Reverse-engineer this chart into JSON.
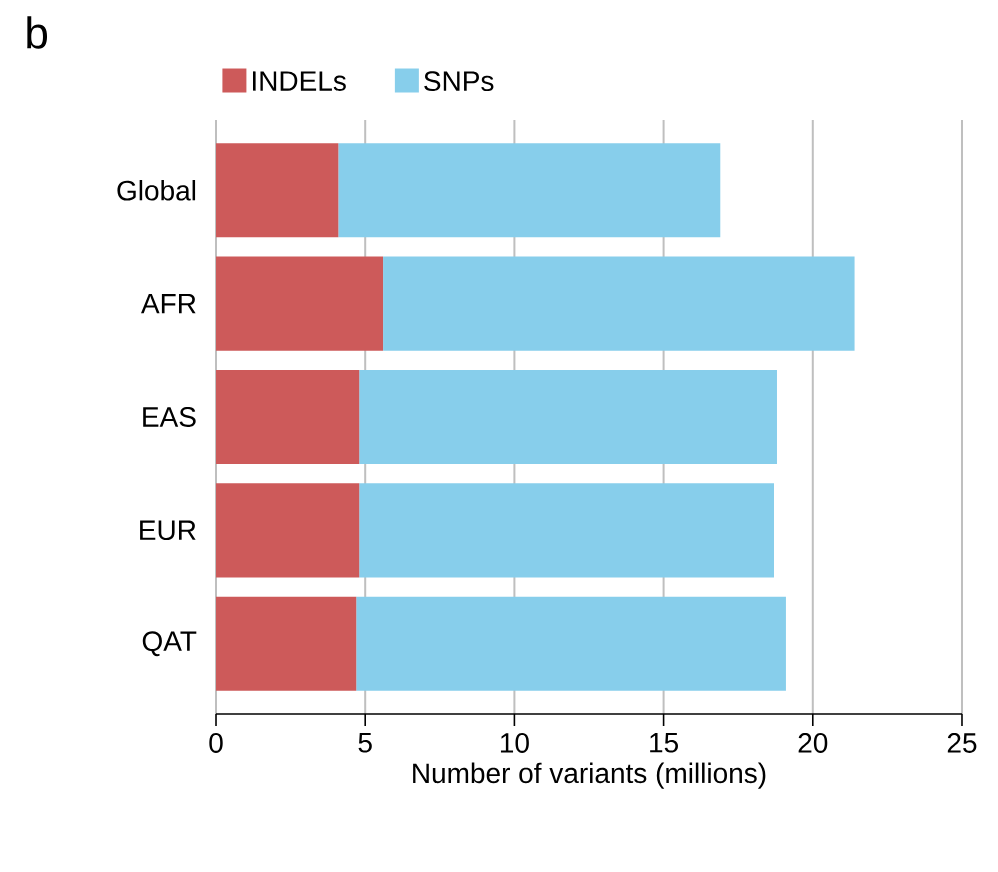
{
  "chart_data": {
    "type": "bar",
    "title": "b",
    "orientation": "horizontal",
    "stacked": true,
    "xlabel": "Number of variants (millions)",
    "categories": [
      "Global",
      "AFR",
      "EAS",
      "EUR",
      "QAT"
    ],
    "series": [
      {
        "name": "INDELs",
        "color": "#cd5a5a",
        "values": [
          4.1,
          5.6,
          4.8,
          4.8,
          4.7
        ]
      },
      {
        "name": "SNPs",
        "color": "#87ceeb",
        "values": [
          12.8,
          15.8,
          14.0,
          13.9,
          14.4
        ]
      }
    ],
    "xlim": [
      0,
      25
    ],
    "xticks": [
      0,
      5,
      10,
      15,
      20,
      25
    ],
    "grid": "x",
    "legend": "top"
  }
}
